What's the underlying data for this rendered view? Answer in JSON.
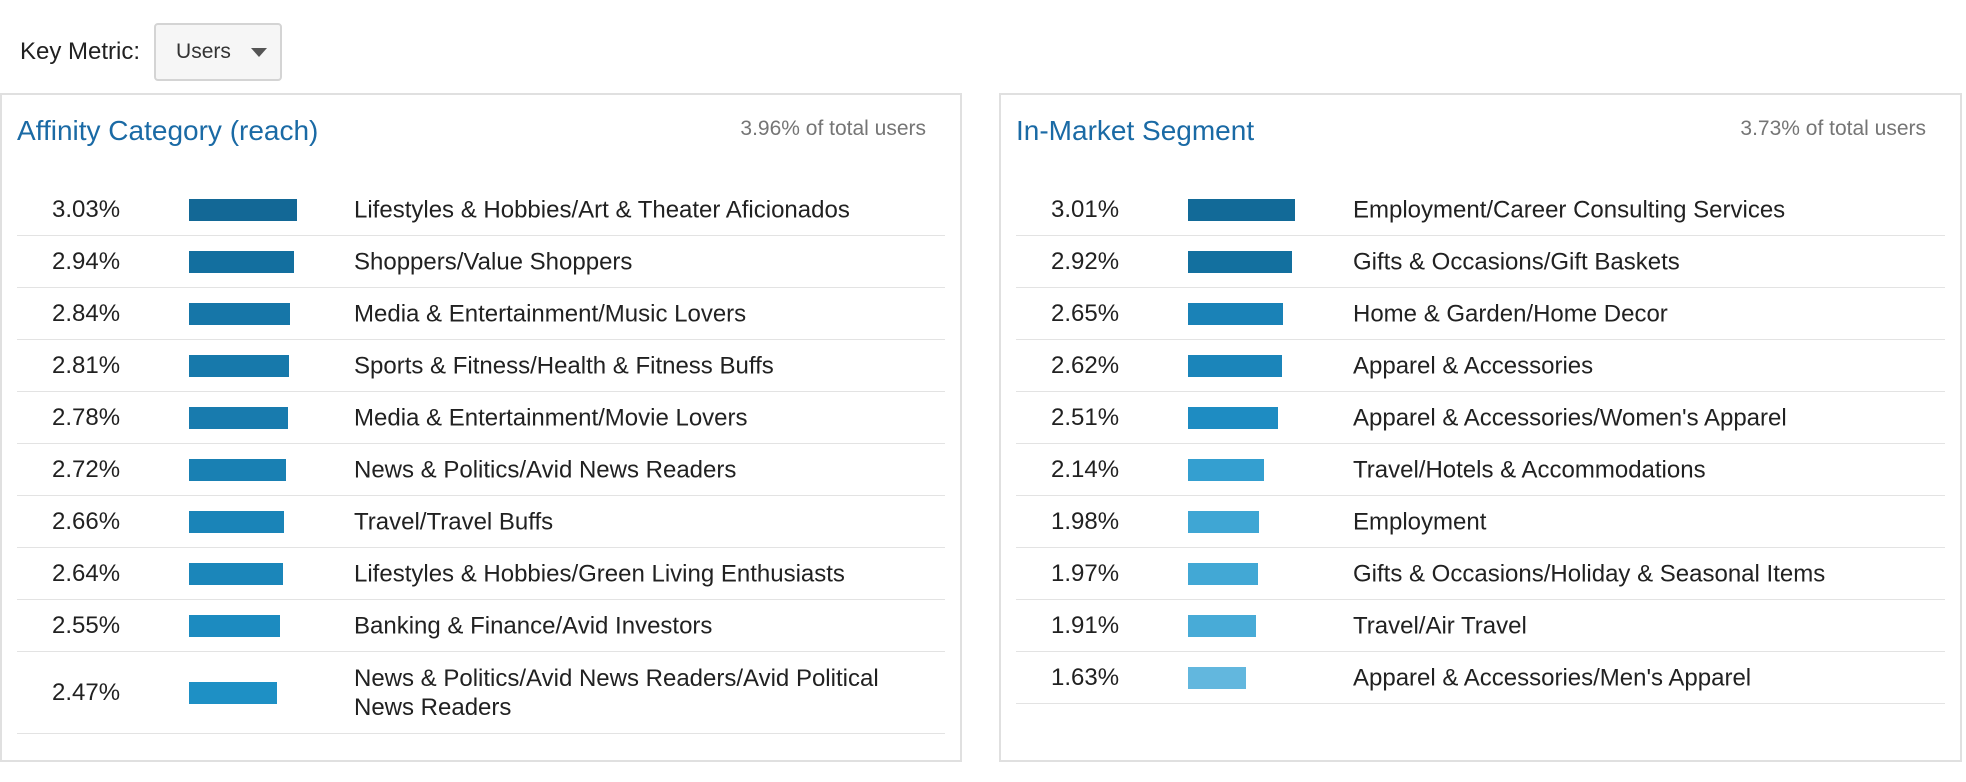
{
  "key_metric": {
    "label": "Key Metric:",
    "selected": "Users"
  },
  "affinity": {
    "title": "Affinity Category (reach)",
    "summary": "3.96% of total users",
    "rows": [
      {
        "percent_label": "3.03%",
        "value": 3.03,
        "category": "Lifestyles & Hobbies/Art & Theater Aficionados",
        "color": "#136896"
      },
      {
        "percent_label": "2.94%",
        "value": 2.94,
        "category": "Shoppers/Value Shoppers",
        "color": "#136f9f"
      },
      {
        "percent_label": "2.84%",
        "value": 2.84,
        "category": "Media & Entertainment/Music Lovers",
        "color": "#1676a8"
      },
      {
        "percent_label": "2.81%",
        "value": 2.81,
        "category": "Sports & Fitness/Health & Fitness Buffs",
        "color": "#1779ab"
      },
      {
        "percent_label": "2.78%",
        "value": 2.78,
        "category": "Media & Entertainment/Movie Lovers",
        "color": "#187bae"
      },
      {
        "percent_label": "2.72%",
        "value": 2.72,
        "category": "News & Politics/Avid News Readers",
        "color": "#1980b3"
      },
      {
        "percent_label": "2.66%",
        "value": 2.66,
        "category": "Travel/Travel Buffs",
        "color": "#1a84b8"
      },
      {
        "percent_label": "2.64%",
        "value": 2.64,
        "category": "Lifestyles & Hobbies/Green Living Enthusiasts",
        "color": "#1b86ba"
      },
      {
        "percent_label": "2.55%",
        "value": 2.55,
        "category": "Banking & Finance/Avid Investors",
        "color": "#1c8bc0"
      },
      {
        "percent_label": "2.47%",
        "value": 2.47,
        "category": "News & Politics/Avid News Readers/Avid Political News Readers",
        "color": "#1e90c5"
      }
    ]
  },
  "in_market": {
    "title": "In-Market Segment",
    "summary": "3.73% of total users",
    "rows": [
      {
        "percent_label": "3.01%",
        "value": 3.01,
        "category": "Employment/Career Consulting Services",
        "color": "#126a98"
      },
      {
        "percent_label": "2.92%",
        "value": 2.92,
        "category": "Gifts & Occasions/Gift Baskets",
        "color": "#13709f"
      },
      {
        "percent_label": "2.65%",
        "value": 2.65,
        "category": "Home & Garden/Home Decor",
        "color": "#1a82b7"
      },
      {
        "percent_label": "2.62%",
        "value": 2.62,
        "category": "Apparel & Accessories",
        "color": "#1b85ba"
      },
      {
        "percent_label": "2.51%",
        "value": 2.51,
        "category": "Apparel & Accessories/Women's Apparel",
        "color": "#1e8cc2"
      },
      {
        "percent_label": "2.14%",
        "value": 2.14,
        "category": "Travel/Hotels & Accommodations",
        "color": "#349fd0"
      },
      {
        "percent_label": "1.98%",
        "value": 1.98,
        "category": "Employment",
        "color": "#3fa6d4"
      },
      {
        "percent_label": "1.97%",
        "value": 1.97,
        "category": "Gifts & Occasions/Holiday & Seasonal Items",
        "color": "#42a8d5"
      },
      {
        "percent_label": "1.91%",
        "value": 1.91,
        "category": "Travel/Air Travel",
        "color": "#48abd7"
      },
      {
        "percent_label": "1.63%",
        "value": 1.63,
        "category": "Apparel & Accessories/Men's Apparel",
        "color": "#62b7de"
      }
    ]
  }
}
